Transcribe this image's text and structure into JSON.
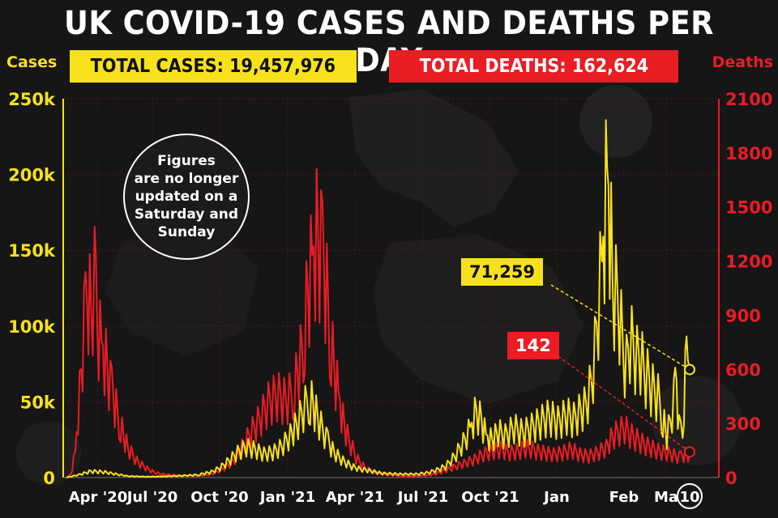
{
  "title": "UK COVID-19 CASES AND DEATHS PER DAY",
  "left_axis_caption": "Cases",
  "right_axis_caption": "Deaths",
  "total_cases_label": "TOTAL CASES: 19,457,976",
  "total_deaths_label": "TOTAL DEATHS: 162,624",
  "note_lines": [
    "Figures",
    "are no longer",
    "updated on a",
    "Saturday and",
    "Sunday"
  ],
  "callouts": {
    "cases": "71,259",
    "deaths": "142"
  },
  "colors": {
    "cases": "#f7e11b",
    "deaths": "#ea1c24",
    "background": "#161616"
  },
  "chart_data": {
    "type": "line",
    "title": "UK COVID-19 CASES AND DEATHS PER DAY",
    "x_ticks": [
      "Apr '20",
      "Jul '20",
      "Oct '20",
      "Jan '21",
      "Apr '21",
      "Jul '21",
      "Oct '21",
      "Jan",
      "Feb",
      "Ma",
      "10"
    ],
    "y_left": {
      "label": "Cases",
      "ticks": [
        "0",
        "50k",
        "100k",
        "150k",
        "200k",
        "250k"
      ],
      "range": [
        0,
        250000
      ]
    },
    "y_right": {
      "label": "Deaths",
      "ticks": [
        "0",
        "300",
        "600",
        "900",
        "1200",
        "1500",
        "1800",
        "2100"
      ],
      "range": [
        0,
        2100
      ]
    },
    "grid": "horizontal dotted",
    "series": [
      {
        "name": "Cases",
        "axis": "left",
        "color": "#f7e11b",
        "day_points": [
          [
            0,
            0
          ],
          [
            14,
            2000
          ],
          [
            28,
            4500
          ],
          [
            42,
            4000
          ],
          [
            56,
            2500
          ],
          [
            70,
            1000
          ],
          [
            90,
            600
          ],
          [
            110,
            800
          ],
          [
            130,
            1200
          ],
          [
            150,
            2000
          ],
          [
            165,
            4000
          ],
          [
            175,
            7000
          ],
          [
            185,
            12000
          ],
          [
            195,
            18000
          ],
          [
            205,
            22000
          ],
          [
            215,
            20000
          ],
          [
            225,
            17000
          ],
          [
            235,
            18000
          ],
          [
            245,
            22000
          ],
          [
            255,
            30000
          ],
          [
            262,
            38000
          ],
          [
            270,
            48000
          ],
          [
            276,
            58000
          ],
          [
            281,
            52000
          ],
          [
            288,
            40000
          ],
          [
            296,
            28000
          ],
          [
            305,
            18000
          ],
          [
            315,
            12000
          ],
          [
            325,
            8000
          ],
          [
            335,
            6000
          ],
          [
            345,
            5000
          ],
          [
            360,
            3000
          ],
          [
            380,
            2500
          ],
          [
            400,
            2500
          ],
          [
            412,
            3500
          ],
          [
            422,
            5500
          ],
          [
            432,
            8000
          ],
          [
            442,
            15000
          ],
          [
            452,
            25000
          ],
          [
            460,
            35000
          ],
          [
            467,
            48000
          ],
          [
            473,
            40000
          ],
          [
            478,
            30000
          ],
          [
            485,
            27000
          ],
          [
            492,
            33000
          ],
          [
            500,
            30000
          ],
          [
            510,
            36000
          ],
          [
            520,
            32000
          ],
          [
            530,
            36000
          ],
          [
            540,
            40000
          ],
          [
            550,
            44000
          ],
          [
            560,
            40000
          ],
          [
            570,
            45000
          ],
          [
            578,
            42000
          ],
          [
            586,
            48000
          ],
          [
            592,
            52000
          ],
          [
            598,
            68000
          ],
          [
            602,
            90000
          ],
          [
            606,
            125000
          ],
          [
            610,
            150000
          ],
          [
            613,
            185000
          ],
          [
            616,
            215000
          ],
          [
            619,
            190000
          ],
          [
            622,
            140000
          ],
          [
            626,
            130000
          ],
          [
            630,
            120000
          ],
          [
            634,
            90000
          ],
          [
            638,
            80000
          ],
          [
            642,
            100000
          ],
          [
            646,
            92000
          ],
          [
            650,
            85000
          ],
          [
            654,
            88000
          ],
          [
            658,
            75000
          ],
          [
            662,
            72000
          ],
          [
            666,
            65000
          ],
          [
            670,
            62000
          ],
          [
            674,
            58000
          ],
          [
            678,
            48000
          ],
          [
            681,
            38000
          ],
          [
            684,
            30000
          ],
          [
            688,
            40000
          ],
          [
            692,
            55000
          ],
          [
            695,
            68000
          ],
          [
            698,
            35000
          ],
          [
            702,
            42000
          ],
          [
            705,
            71259
          ],
          [
            708,
            125000
          ],
          [
            710,
            71259
          ]
        ]
      },
      {
        "name": "Deaths",
        "axis": "right",
        "color": "#ea1c24",
        "day_points": [
          [
            0,
            0
          ],
          [
            5,
            20
          ],
          [
            10,
            150
          ],
          [
            15,
            500
          ],
          [
            20,
            900
          ],
          [
            25,
            1100
          ],
          [
            28,
            1000
          ],
          [
            32,
            1180
          ],
          [
            35,
            900
          ],
          [
            40,
            800
          ],
          [
            45,
            700
          ],
          [
            50,
            550
          ],
          [
            55,
            450
          ],
          [
            60,
            350
          ],
          [
            65,
            250
          ],
          [
            70,
            180
          ],
          [
            80,
            100
          ],
          [
            90,
            60
          ],
          [
            100,
            30
          ],
          [
            110,
            20
          ],
          [
            120,
            15
          ],
          [
            140,
            10
          ],
          [
            160,
            15
          ],
          [
            170,
            30
          ],
          [
            180,
            60
          ],
          [
            190,
            100
          ],
          [
            200,
            180
          ],
          [
            210,
            270
          ],
          [
            220,
            350
          ],
          [
            230,
            450
          ],
          [
            240,
            500
          ],
          [
            250,
            460
          ],
          [
            258,
            520
          ],
          [
            265,
            650
          ],
          [
            270,
            850
          ],
          [
            275,
            1100
          ],
          [
            280,
            1300
          ],
          [
            285,
            1450
          ],
          [
            290,
            1350
          ],
          [
            295,
            1200
          ],
          [
            300,
            900
          ],
          [
            305,
            650
          ],
          [
            310,
            500
          ],
          [
            315,
            350
          ],
          [
            320,
            250
          ],
          [
            330,
            120
          ],
          [
            340,
            60
          ],
          [
            350,
            30
          ],
          [
            360,
            20
          ],
          [
            380,
            10
          ],
          [
            400,
            8
          ],
          [
            415,
            15
          ],
          [
            425,
            30
          ],
          [
            435,
            50
          ],
          [
            445,
            70
          ],
          [
            455,
            90
          ],
          [
            465,
            110
          ],
          [
            475,
            140
          ],
          [
            485,
            160
          ],
          [
            495,
            170
          ],
          [
            505,
            150
          ],
          [
            515,
            160
          ],
          [
            525,
            180
          ],
          [
            535,
            160
          ],
          [
            545,
            150
          ],
          [
            555,
            140
          ],
          [
            565,
            150
          ],
          [
            575,
            170
          ],
          [
            585,
            140
          ],
          [
            595,
            130
          ],
          [
            605,
            150
          ],
          [
            615,
            180
          ],
          [
            622,
            250
          ],
          [
            630,
            280
          ],
          [
            636,
            300
          ],
          [
            642,
            260
          ],
          [
            650,
            230
          ],
          [
            658,
            200
          ],
          [
            666,
            180
          ],
          [
            674,
            160
          ],
          [
            682,
            150
          ],
          [
            690,
            140
          ],
          [
            698,
            120
          ],
          [
            705,
            142
          ],
          [
            710,
            142
          ]
        ]
      }
    ],
    "annotations": [
      "Figures are no longer updated on a Saturday and Sunday",
      "71,259",
      "142"
    ]
  }
}
